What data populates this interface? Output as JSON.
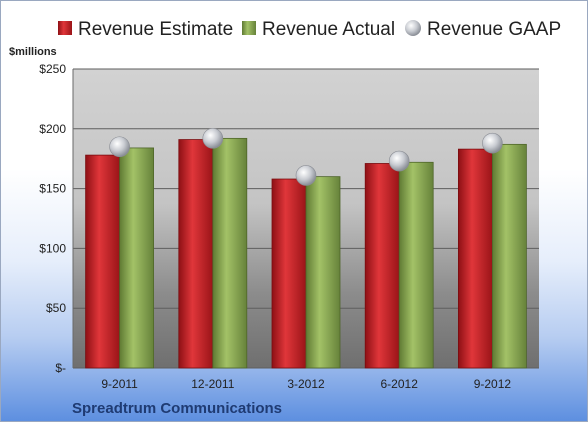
{
  "chart_data": {
    "type": "bar",
    "title": "",
    "subtitle": "Spreadtrum Communications",
    "ylabel": "$millions",
    "xlabel": "",
    "categories": [
      "9-2011",
      "12-2011",
      "3-2012",
      "6-2012",
      "9-2012"
    ],
    "series": [
      {
        "name": "Revenue Estimate",
        "kind": "bar",
        "color": "#cc1f24",
        "values": [
          178,
          191,
          158,
          171,
          183
        ]
      },
      {
        "name": "Revenue Actual",
        "kind": "bar",
        "color": "#8aa850",
        "values": [
          184,
          192,
          160,
          172,
          187
        ]
      },
      {
        "name": "Revenue GAAP",
        "kind": "marker",
        "color": "#b8bcc4",
        "values": [
          185,
          192,
          161,
          173,
          188
        ]
      }
    ],
    "ylim": [
      0,
      250
    ],
    "yticks": [
      0,
      50,
      100,
      150,
      200,
      250
    ],
    "ytick_labels": [
      "$-",
      "$50",
      "$100",
      "$150",
      "$200",
      "$250"
    ],
    "grid": true,
    "legend_position": "top"
  }
}
